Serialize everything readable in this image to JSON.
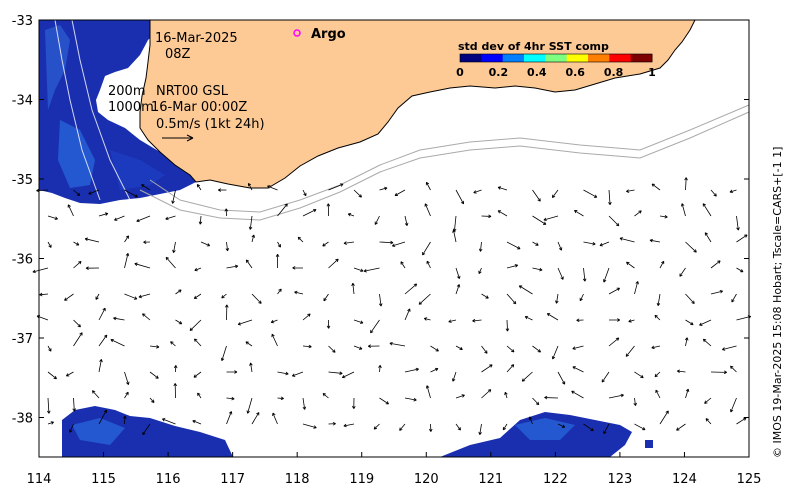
{
  "map": {
    "date_line": "16-Mar-2025",
    "time_line": "08Z",
    "depth_200": "200m",
    "depth_1000": "1000m",
    "product": "NRT00 GSL",
    "velocity_time": "16-Mar 00:00Z",
    "arrow_scale": "0.5m/s (1kt 24h)",
    "argo_label": "Argo",
    "credit": "© IMOS 19-Mar-2025 15:08 Hobart; Tscale=CARS+[-1 1]",
    "x_ticks": [
      "114",
      "115",
      "116",
      "117",
      "118",
      "119",
      "120",
      "121",
      "122",
      "123",
      "124",
      "125"
    ],
    "y_ticks": [
      "-33",
      "-34",
      "-35",
      "-36",
      "-37",
      "-38"
    ],
    "colorbar": {
      "title": "std dev of 4hr SST comp",
      "ticks": [
        "0",
        "0.2",
        "0.4",
        "0.6",
        "0.8",
        "1"
      ],
      "colormap": [
        "#00007f",
        "#0000ff",
        "#007fff",
        "#00ffff",
        "#7fff7f",
        "#ffff00",
        "#ff7f00",
        "#ff0000",
        "#7f0000"
      ]
    },
    "colors": {
      "land": "#fdca96",
      "sst_blue": "#1a2fb0",
      "argo": "#ff00ff"
    }
  }
}
